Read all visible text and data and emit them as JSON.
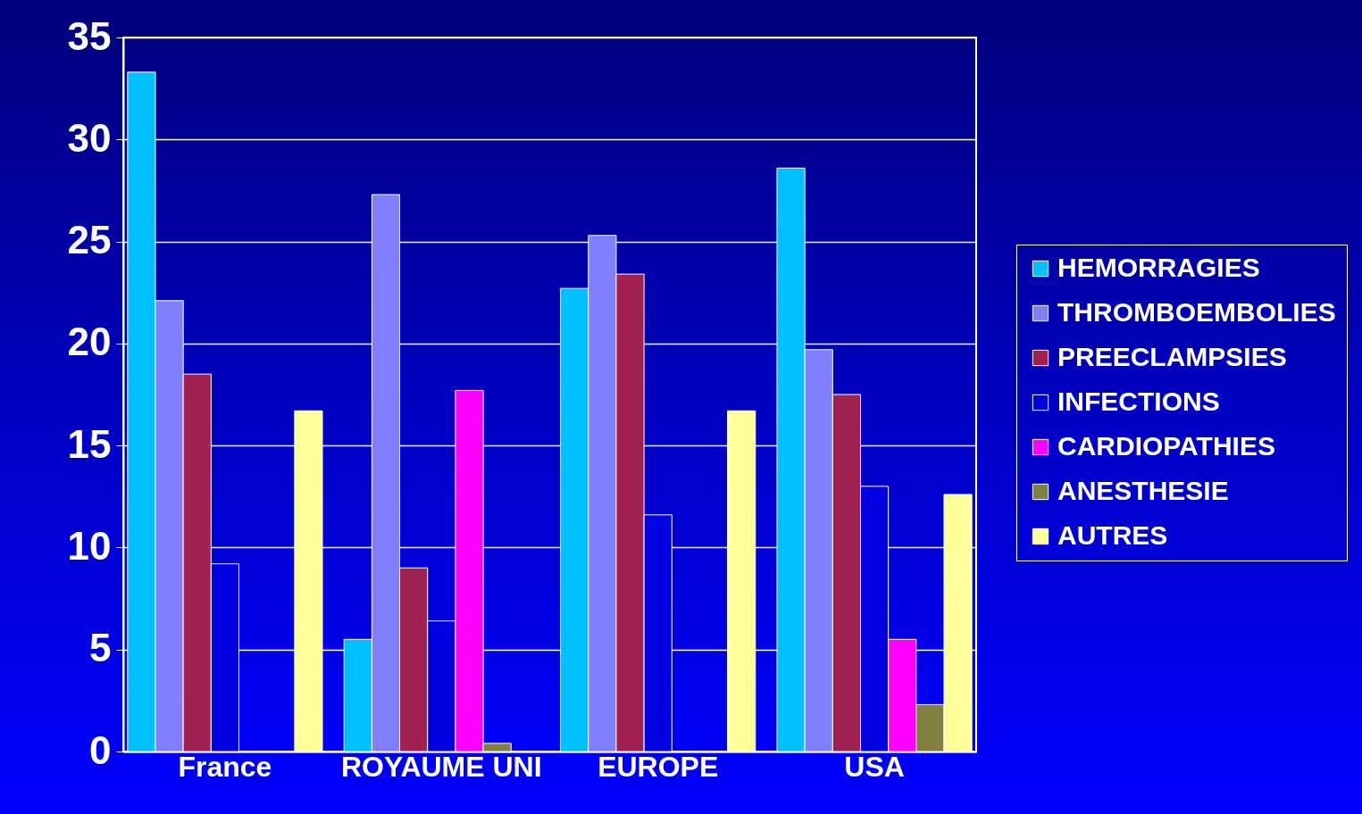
{
  "chart_data": {
    "type": "bar",
    "categories": [
      "France",
      "ROYAUME UNI",
      "EUROPE",
      "USA"
    ],
    "series": [
      {
        "name": "HEMORRAGIES",
        "color": "#00c0ff",
        "values": [
          33.3,
          5.5,
          22.7,
          28.6
        ]
      },
      {
        "name": "THROMBOEMBOLIES",
        "color": "#8080ff",
        "values": [
          22.1,
          27.3,
          25.3,
          19.7
        ]
      },
      {
        "name": "PREECLAMPSIES",
        "color": "#a02050",
        "values": [
          18.5,
          9.0,
          23.4,
          17.5
        ]
      },
      {
        "name": "INFECTIONS",
        "color": "#0000e0",
        "values": [
          9.2,
          6.4,
          11.6,
          13.0
        ]
      },
      {
        "name": "CARDIOPATHIES",
        "color": "#ff00ff",
        "values": [
          0,
          17.7,
          0,
          5.5
        ]
      },
      {
        "name": "ANESTHESIE",
        "color": "#808040",
        "values": [
          0,
          0.4,
          0,
          2.3
        ]
      },
      {
        "name": "AUTRES",
        "color": "#ffff99",
        "values": [
          16.7,
          0,
          16.7,
          12.6
        ]
      }
    ],
    "ylim": [
      0,
      35
    ],
    "yticks": [
      0,
      5,
      10,
      15,
      20,
      25,
      30,
      35
    ],
    "grid": "y",
    "legend": "right"
  }
}
